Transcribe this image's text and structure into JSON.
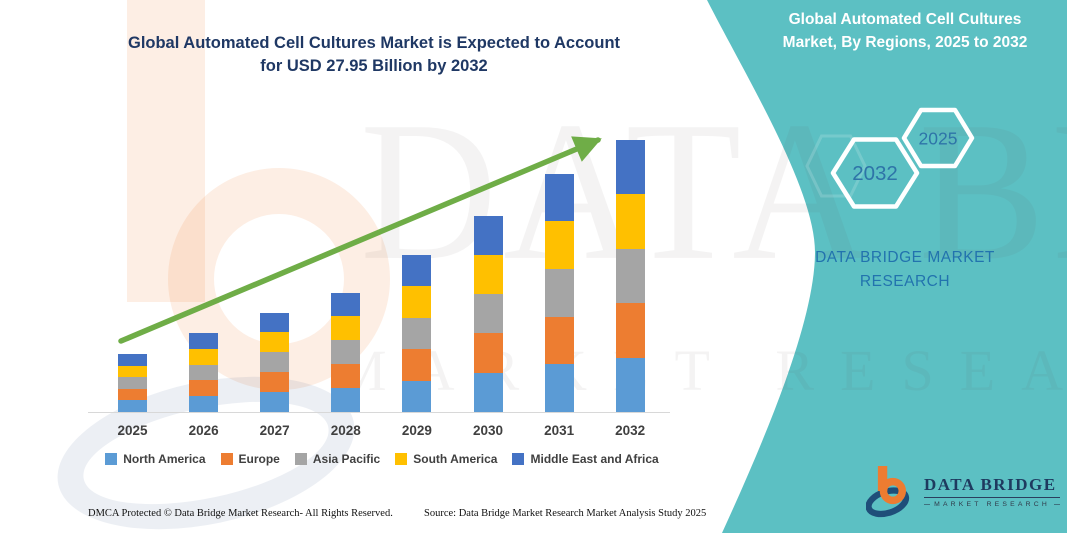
{
  "main_title": {
    "line1": "Global Automated Cell Cultures Market is Expected to Account",
    "line2": "for USD 27.95 Billion by 2032",
    "color": "#1F3864"
  },
  "side_panel": {
    "background_color": "#5CC0C3",
    "title_line1": "Global Automated Cell Cultures",
    "title_line2": "Market, By Regions, 2025 to 2032",
    "hexagons": [
      {
        "label": "2032"
      },
      {
        "label": "2025"
      }
    ],
    "brand_line1": "DATA BRIDGE MARKET",
    "brand_line2": "RESEARCH",
    "brand_text_color": "#2273AE"
  },
  "chart_data": {
    "type": "bar",
    "stacked": true,
    "title": "Global Automated Cell Cultures Market is Expected to Account for USD 27.95 Billion by 2032",
    "unit": "USD Billion",
    "categories": [
      "2025",
      "2026",
      "2027",
      "2028",
      "2029",
      "2030",
      "2031",
      "2032"
    ],
    "series": [
      {
        "name": "North America",
        "color": "#5B9BD5",
        "values": [
          1.19,
          1.62,
          2.04,
          2.45,
          3.23,
          4.03,
          4.89,
          5.59
        ]
      },
      {
        "name": "Europe",
        "color": "#ED7D31",
        "values": [
          1.19,
          1.62,
          2.04,
          2.45,
          3.23,
          4.03,
          4.89,
          5.59
        ]
      },
      {
        "name": "Asia Pacific",
        "color": "#A5A5A5",
        "values": [
          1.19,
          1.62,
          2.04,
          2.45,
          3.23,
          4.03,
          4.89,
          5.59
        ]
      },
      {
        "name": "South America",
        "color": "#FFC000",
        "values": [
          1.19,
          1.62,
          2.04,
          2.45,
          3.23,
          4.03,
          4.89,
          5.59
        ]
      },
      {
        "name": "Middle East and Africa",
        "color": "#4472C4",
        "values": [
          1.19,
          1.62,
          2.04,
          2.45,
          3.23,
          4.03,
          4.89,
          5.59
        ]
      }
    ],
    "totals": [
      5.95,
      8.1,
      10.2,
      12.25,
      16.15,
      20.15,
      24.45,
      27.95
    ],
    "highlight_value_2032": 27.95,
    "trend_arrow": true,
    "trend_arrow_color": "#6FAD47",
    "x_axis_visible": true,
    "y_axis_visible": false,
    "grid": false,
    "legend_position": "bottom"
  },
  "watermark": {
    "row1": "DATA BRIDGE",
    "row2": "MARKET RESEARCH"
  },
  "logo": {
    "title": "DATA BRIDGE",
    "subtitle": "MARKET  RESEARCH"
  },
  "footer": {
    "left_text": "DMCA Protected © Data Bridge Market Research-  All Rights Reserved.",
    "right_text": "Source: Data Bridge Market Research  Market Analysis Study 2025"
  }
}
